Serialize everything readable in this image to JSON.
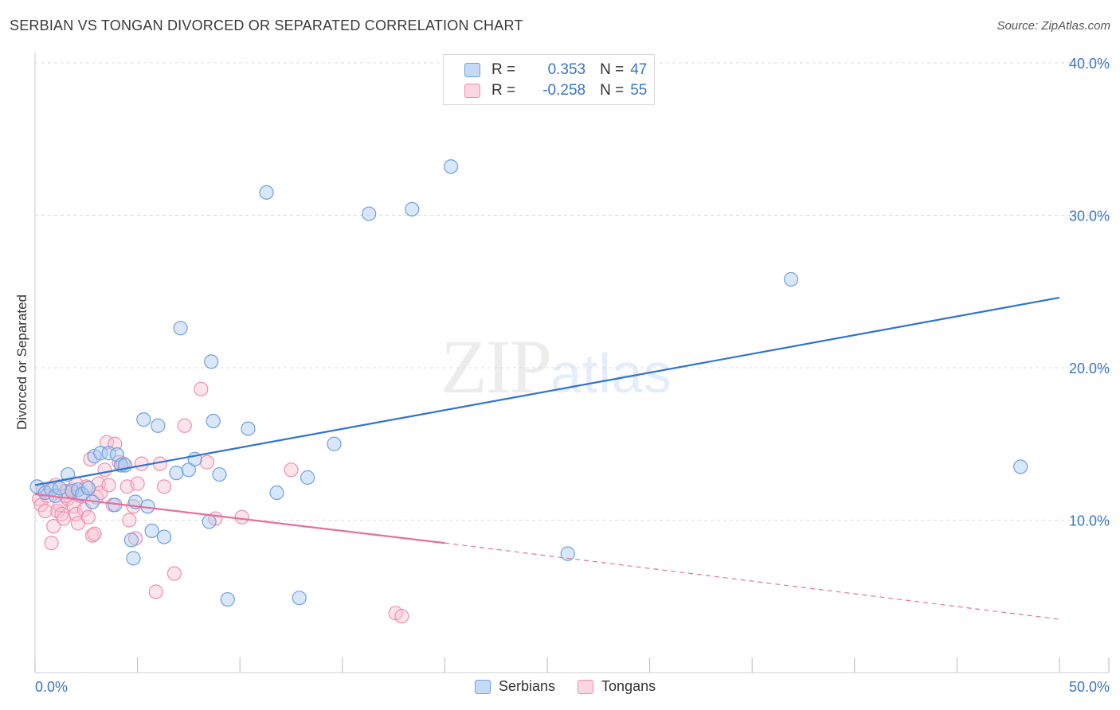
{
  "header": {
    "title": "SERBIAN VS TONGAN DIVORCED OR SEPARATED CORRELATION CHART",
    "source": "Source: ZipAtlas.com"
  },
  "watermark": {
    "zip": "ZIP",
    "atlas": "atlas"
  },
  "legend": {
    "rows": [
      {
        "r_label": "R =",
        "r_value": "0.353",
        "n_label": "N =",
        "n_value": "47",
        "color": "#a9c9f2",
        "border": "#6fa0e0"
      },
      {
        "r_label": "R =",
        "r_value": "-0.258",
        "n_label": "N =",
        "n_value": "55",
        "color": "#f8c3d3",
        "border": "#ee8fab"
      }
    ]
  },
  "bottom_legend": {
    "serbians": "Serbians",
    "tongans": "Tongans"
  },
  "chart_data": {
    "type": "scatter",
    "title": "SERBIAN VS TONGAN DIVORCED OR SEPARATED CORRELATION CHART",
    "xlabel": "",
    "ylabel": "Divorced or Separated",
    "xlim": [
      0,
      50
    ],
    "ylim": [
      0,
      42
    ],
    "x_tick_labels": [
      "0.0%",
      "50.0%"
    ],
    "y_ticks": [
      10,
      20,
      30,
      40
    ],
    "y_tick_labels": [
      "10.0%",
      "20.0%",
      "30.0%",
      "40.0%"
    ],
    "grid": true,
    "series": [
      {
        "name": "Serbians",
        "color": "#6fa0e0",
        "fill": "#a9c9f2",
        "trend": {
          "x": [
            0,
            50
          ],
          "y": [
            12.3,
            24.6
          ],
          "color": "#2f74d0"
        },
        "points": [
          [
            0.1,
            12.2
          ],
          [
            0.5,
            11.8
          ],
          [
            0.8,
            12.0
          ],
          [
            1.0,
            11.6
          ],
          [
            1.2,
            12.1
          ],
          [
            1.6,
            13.0
          ],
          [
            1.8,
            11.9
          ],
          [
            2.1,
            12.0
          ],
          [
            2.3,
            11.7
          ],
          [
            2.6,
            12.1
          ],
          [
            2.8,
            11.2
          ],
          [
            2.9,
            14.2
          ],
          [
            3.2,
            14.4
          ],
          [
            3.6,
            14.4
          ],
          [
            3.9,
            11.0
          ],
          [
            4.0,
            14.3
          ],
          [
            4.2,
            13.6
          ],
          [
            4.4,
            13.6
          ],
          [
            4.7,
            8.7
          ],
          [
            4.8,
            7.5
          ],
          [
            4.9,
            11.2
          ],
          [
            5.3,
            16.6
          ],
          [
            5.5,
            10.9
          ],
          [
            5.7,
            9.3
          ],
          [
            6.0,
            16.2
          ],
          [
            6.3,
            8.9
          ],
          [
            6.9,
            13.1
          ],
          [
            7.1,
            22.6
          ],
          [
            7.5,
            13.3
          ],
          [
            7.8,
            14.0
          ],
          [
            8.5,
            9.9
          ],
          [
            8.6,
            20.4
          ],
          [
            8.7,
            16.5
          ],
          [
            9.0,
            13.0
          ],
          [
            9.4,
            4.8
          ],
          [
            10.4,
            16.0
          ],
          [
            11.3,
            31.5
          ],
          [
            11.8,
            11.8
          ],
          [
            12.9,
            4.9
          ],
          [
            13.3,
            12.8
          ],
          [
            14.6,
            15.0
          ],
          [
            16.3,
            30.1
          ],
          [
            18.4,
            30.4
          ],
          [
            20.3,
            33.2
          ],
          [
            26.0,
            7.8
          ],
          [
            36.9,
            25.8
          ],
          [
            48.1,
            13.5
          ]
        ]
      },
      {
        "name": "Tongans",
        "color": "#ee8fab",
        "fill": "#f8c3d3",
        "trend": {
          "x": [
            0,
            20
          ],
          "y": [
            11.7,
            8.5
          ],
          "dash_x": [
            20,
            50
          ],
          "dash_y": [
            8.5,
            3.5
          ],
          "color": "#e5709a"
        },
        "points": [
          [
            0.2,
            11.4
          ],
          [
            0.3,
            11.0
          ],
          [
            0.5,
            10.6
          ],
          [
            0.6,
            11.6
          ],
          [
            0.8,
            8.5
          ],
          [
            0.9,
            9.6
          ],
          [
            1.0,
            12.3
          ],
          [
            1.1,
            10.6
          ],
          [
            1.2,
            11.0
          ],
          [
            1.3,
            10.4
          ],
          [
            1.4,
            10.1
          ],
          [
            1.5,
            11.9
          ],
          [
            1.6,
            11.4
          ],
          [
            1.8,
            12.0
          ],
          [
            1.9,
            10.9
          ],
          [
            2.0,
            10.4
          ],
          [
            2.0,
            12.4
          ],
          [
            2.1,
            9.8
          ],
          [
            2.2,
            11.6
          ],
          [
            2.4,
            10.7
          ],
          [
            2.5,
            12.2
          ],
          [
            2.6,
            10.2
          ],
          [
            2.7,
            14.0
          ],
          [
            2.8,
            9.0
          ],
          [
            2.9,
            9.1
          ],
          [
            3.0,
            11.5
          ],
          [
            3.1,
            12.4
          ],
          [
            3.2,
            11.8
          ],
          [
            3.4,
            13.3
          ],
          [
            3.5,
            15.1
          ],
          [
            3.6,
            12.3
          ],
          [
            3.8,
            11.0
          ],
          [
            3.9,
            15.0
          ],
          [
            4.1,
            13.8
          ],
          [
            4.3,
            13.7
          ],
          [
            4.5,
            12.2
          ],
          [
            4.6,
            10.0
          ],
          [
            4.8,
            10.9
          ],
          [
            4.9,
            8.8
          ],
          [
            5.0,
            12.4
          ],
          [
            5.2,
            13.7
          ],
          [
            5.9,
            5.3
          ],
          [
            6.1,
            13.7
          ],
          [
            6.3,
            12.2
          ],
          [
            6.8,
            6.5
          ],
          [
            7.3,
            16.2
          ],
          [
            8.1,
            18.6
          ],
          [
            8.4,
            13.8
          ],
          [
            8.8,
            10.1
          ],
          [
            10.1,
            10.2
          ],
          [
            12.5,
            13.3
          ],
          [
            17.6,
            3.9
          ],
          [
            17.9,
            3.7
          ],
          [
            0.4,
            12.0
          ],
          [
            1.5,
            11.6
          ]
        ]
      }
    ]
  }
}
